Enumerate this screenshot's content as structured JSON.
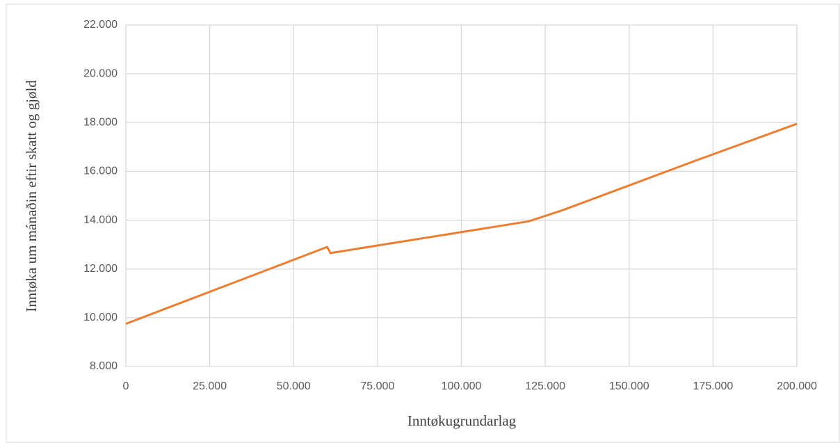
{
  "chart_data": {
    "type": "line",
    "x_label": "Inntøkugrundarlag",
    "y_label": "Inntøka um mánaðin eftir skatt og gjøld",
    "series": [
      {
        "color": "#ed7d31",
        "x": [
          0,
          60000,
          61000,
          70000,
          120000,
          130000,
          170000,
          200000
        ],
        "values": [
          9750,
          12900,
          12650,
          12850,
          13950,
          14400,
          16450,
          17950
        ]
      }
    ],
    "xlim": [
      0,
      200000
    ],
    "xticks": [
      0,
      {
        "value": 25000,
        "label": "25.000"
      },
      {
        "value": 50000,
        "label": "50.000"
      },
      {
        "value": 75000,
        "label": "75.000"
      },
      {
        "value": 100000,
        "label": "100.000"
      },
      {
        "value": 125000,
        "label": "125.000"
      },
      {
        "value": 150000,
        "label": "150.000"
      },
      {
        "value": 175000,
        "label": "175.000"
      },
      {
        "value": 200000,
        "label": "200.000"
      }
    ],
    "ylim": [
      8000,
      22000
    ],
    "yticks": [
      {
        "value": 8000,
        "label": "8.000"
      },
      {
        "value": 10000,
        "label": "10.000"
      },
      {
        "value": 12000,
        "label": "12.000"
      },
      {
        "value": 14000,
        "label": "14.000"
      },
      {
        "value": 16000,
        "label": "16.000"
      },
      {
        "value": 18000,
        "label": "18.000"
      },
      {
        "value": 20000,
        "label": "20.000"
      },
      {
        "value": 22000,
        "label": "22.000"
      }
    ],
    "grid": true
  }
}
